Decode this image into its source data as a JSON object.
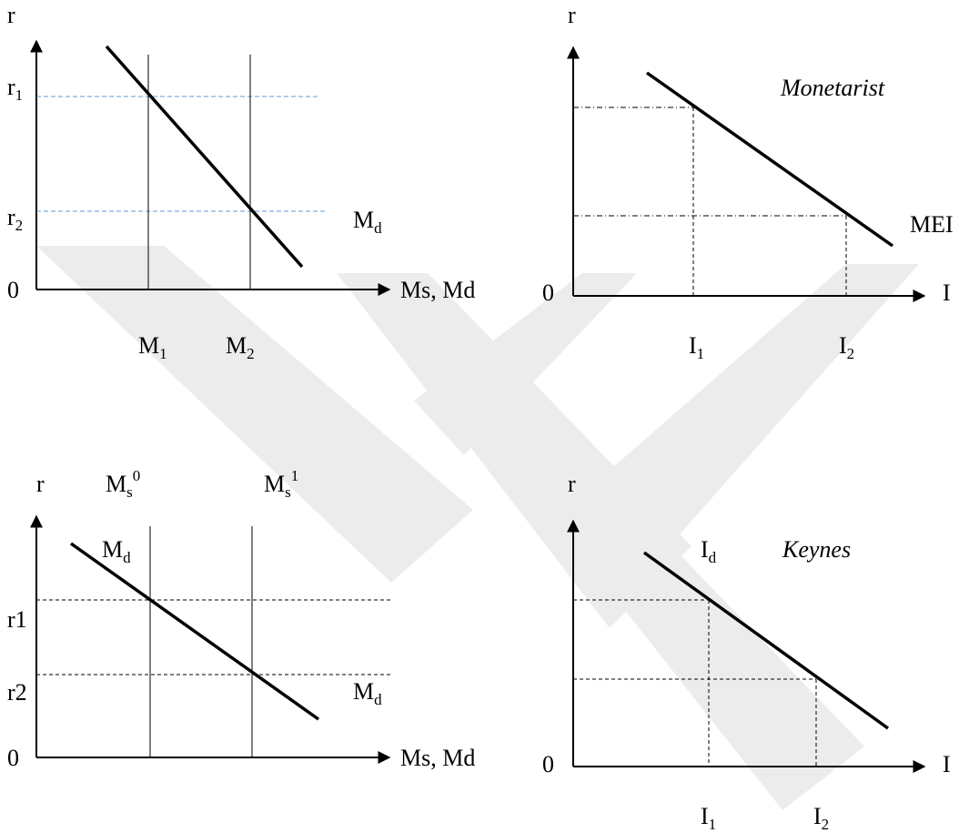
{
  "panels": {
    "top_left": {
      "y_axis_label": "r",
      "origin_label": "0",
      "x_axis_label": "Ms, Md",
      "r1": {
        "base": "r",
        "sub": "1"
      },
      "r2": {
        "base": "r",
        "sub": "2"
      },
      "m1": {
        "base": "M",
        "sub": "1"
      },
      "m2": {
        "base": "M",
        "sub": "2"
      },
      "curve": {
        "base": "M",
        "sub": "d"
      },
      "guide_color": "#5b9bd5"
    },
    "top_right": {
      "y_axis_label": "r",
      "origin_label": "0",
      "x_axis_label": "I",
      "title": "Monetarist",
      "curve_label": "MEI",
      "i1": {
        "base": "I",
        "sub": "1"
      },
      "i2": {
        "base": "I",
        "sub": "2"
      }
    },
    "bottom_left": {
      "y_axis_label": "r",
      "origin_label": "0",
      "x_axis_label": "Ms, Md",
      "r1": "r1",
      "r2": "r2",
      "ms0": {
        "base": "M",
        "sub": "s",
        "sup": "0"
      },
      "ms1": {
        "base": "M",
        "sub": "s",
        "sup": "1"
      },
      "curve_top": {
        "base": "M",
        "sub": "d"
      },
      "curve_bottom": {
        "base": "M",
        "sub": "d"
      }
    },
    "bottom_right": {
      "y_axis_label": "r",
      "origin_label": "0",
      "x_axis_label": "I",
      "title": "Keynes",
      "curve_label": {
        "base": "I",
        "sub": "d"
      },
      "i1": {
        "base": "I",
        "sub": "1"
      },
      "i2": {
        "base": "I",
        "sub": "2"
      }
    }
  },
  "colors": {
    "line": "#000000",
    "watermark": "#e9e9e9"
  }
}
